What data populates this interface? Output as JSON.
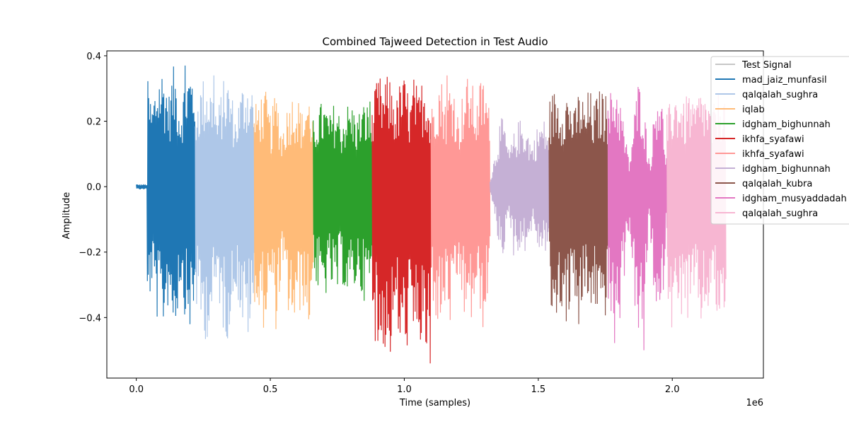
{
  "chart_data": {
    "type": "line",
    "title": "Combined Tajweed Detection in Test Audio",
    "xlabel": "Time (samples)",
    "ylabel": "Amplitude",
    "x_offset_label": "1e6",
    "xlim": [
      -110000,
      2340000
    ],
    "ylim": [
      -0.585,
      0.415
    ],
    "x_ticks": [
      {
        "value": 0,
        "label": "0.0"
      },
      {
        "value": 500000,
        "label": "0.5"
      },
      {
        "value": 1000000,
        "label": "1.0"
      },
      {
        "value": 1500000,
        "label": "1.5"
      },
      {
        "value": 2000000,
        "label": "2.0"
      }
    ],
    "y_ticks": [
      {
        "value": 0.4,
        "label": "0.4"
      },
      {
        "value": 0.2,
        "label": "0.2"
      },
      {
        "value": 0.0,
        "label": "0.0"
      },
      {
        "value": -0.2,
        "label": "−0.2"
      },
      {
        "value": -0.4,
        "label": "−0.4"
      }
    ],
    "legend_position": "upper right (partially outside axes)",
    "grid": false,
    "series": [
      {
        "name": "Test Signal",
        "color": "#c7c7c7",
        "x_range": [
          0,
          2200000
        ]
      },
      {
        "name": "mad_jaiz_munfasil",
        "color": "#1f77b4",
        "x_range": [
          0,
          220000
        ],
        "max": 0.37,
        "min": -0.44
      },
      {
        "name": "qalqalah_sughra",
        "color": "#aec7e8",
        "x_range": [
          220000,
          440000
        ],
        "max": 0.34,
        "min": -0.47
      },
      {
        "name": "iqlab",
        "color": "#ffbb78",
        "x_range": [
          440000,
          660000
        ],
        "max": 0.29,
        "min": -0.44
      },
      {
        "name": "idgham_bighunnah",
        "color": "#2ca02c",
        "x_range": [
          660000,
          880000
        ],
        "max": 0.26,
        "min": -0.35
      },
      {
        "name": "ikhfa_syafawi",
        "color": "#d62728",
        "x_range": [
          880000,
          1100000
        ],
        "max": 0.34,
        "min": -0.54
      },
      {
        "name": "ikhfa_syafawi",
        "color": "#ff9896",
        "x_range": [
          1100000,
          1320000
        ],
        "max": 0.34,
        "min": -0.44
      },
      {
        "name": "idgham_bighunnah",
        "color": "#c5b0d5",
        "x_range": [
          1320000,
          1540000
        ],
        "max": 0.21,
        "min": -0.21
      },
      {
        "name": "qalqalah_kubra",
        "color": "#8c564b",
        "x_range": [
          1540000,
          1760000
        ],
        "max": 0.3,
        "min": -0.42
      },
      {
        "name": "idgham_musyaddadah",
        "color": "#e377c2",
        "x_range": [
          1760000,
          1980000
        ],
        "max": 0.33,
        "min": -0.5
      },
      {
        "name": "qalqalah_sughra",
        "color": "#f7b6d2",
        "x_range": [
          1980000,
          2200000
        ],
        "max": 0.3,
        "min": -0.43
      }
    ]
  }
}
